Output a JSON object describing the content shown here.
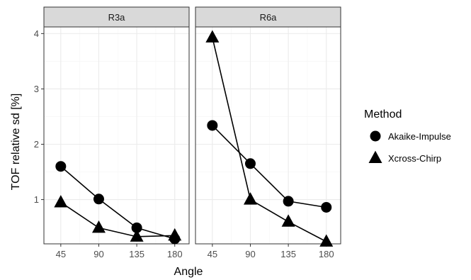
{
  "chart_data": {
    "type": "line",
    "xlabel": "Angle",
    "ylabel": "TOF relative sd [%]",
    "x_ticks": [
      45,
      90,
      135,
      180
    ],
    "y_ticks": [
      1,
      2,
      3,
      4
    ],
    "xlim": [
      25,
      197
    ],
    "ylim": [
      0.2,
      4.12
    ],
    "grid": true,
    "legend": {
      "title": "Method",
      "placement": "right",
      "entries": [
        {
          "label": "Akaike-Impulse",
          "shape": "circle"
        },
        {
          "label": "Xcross-Chirp",
          "shape": "triangle"
        }
      ]
    },
    "panels": [
      {
        "label": "R3a",
        "series": [
          {
            "name": "Akaike-Impulse",
            "x": [
              45,
              90,
              135,
              180
            ],
            "y": [
              1.6,
              1.01,
              0.49,
              0.29
            ]
          },
          {
            "name": "Xcross-Chirp",
            "x": [
              45,
              90,
              135,
              180
            ],
            "y": [
              0.95,
              0.49,
              0.33,
              0.35
            ]
          }
        ]
      },
      {
        "label": "R6a",
        "series": [
          {
            "name": "Akaike-Impulse",
            "x": [
              45,
              90,
              135,
              180
            ],
            "y": [
              2.34,
              1.65,
              0.97,
              0.86
            ]
          },
          {
            "name": "Xcross-Chirp",
            "x": [
              45,
              90,
              135,
              180
            ],
            "y": [
              3.93,
              1.0,
              0.6,
              0.24
            ]
          }
        ]
      }
    ]
  },
  "colors": {
    "strip_fill": "#d9d9d9",
    "panel_border": "#333333",
    "grid_major": "#ebebeb",
    "grid_minor": "#f5f5f5",
    "marks": "#000000"
  }
}
